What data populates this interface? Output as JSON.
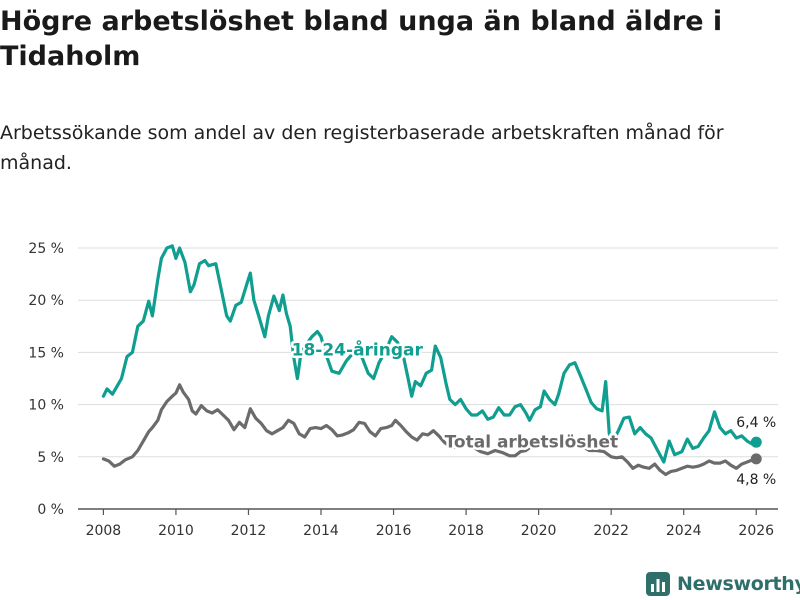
{
  "title": "Högre arbetslöshet bland unga än bland äldre i Tidaholm",
  "subtitle": "Arbetssökande som andel av den registerbaserade arbetskraften månad för månad.",
  "brand": "Newsworthy",
  "colors": {
    "youth": "#0f9e8f",
    "total": "#6b6b6b",
    "grid": "#dddddd",
    "brand": "#2f6f6a"
  },
  "chart_data": {
    "type": "line",
    "title": "Högre arbetslöshet bland unga än bland äldre i Tidaholm",
    "xlabel": "",
    "ylabel": "",
    "xlim": [
      2007.3,
      2026.6
    ],
    "ylim": [
      0,
      25
    ],
    "x_ticks": [
      2008,
      2010,
      2012,
      2014,
      2016,
      2018,
      2020,
      2022,
      2024,
      2026
    ],
    "x_tick_labels": [
      "2008",
      "2010",
      "2012",
      "2014",
      "2016",
      "2018",
      "2020",
      "2022",
      "2024",
      "2026"
    ],
    "y_ticks": [
      0,
      5,
      10,
      15,
      20,
      25
    ],
    "y_tick_labels": [
      "0 %",
      "5 %",
      "10 %",
      "15 %",
      "20 %",
      "25 %"
    ],
    "grid": true,
    "series": [
      {
        "name": "18-24-åringar",
        "label": "18-24-åringar",
        "end_label": "6,4 %",
        "points": [
          [
            2008.0,
            10.8
          ],
          [
            2008.1,
            11.5
          ],
          [
            2008.25,
            11.0
          ],
          [
            2008.5,
            12.5
          ],
          [
            2008.65,
            14.6
          ],
          [
            2008.8,
            15.0
          ],
          [
            2008.95,
            17.5
          ],
          [
            2009.1,
            18.0
          ],
          [
            2009.25,
            19.9
          ],
          [
            2009.35,
            18.5
          ],
          [
            2009.5,
            22.0
          ],
          [
            2009.6,
            24.0
          ],
          [
            2009.75,
            25.0
          ],
          [
            2009.9,
            25.2
          ],
          [
            2010.0,
            24.0
          ],
          [
            2010.1,
            25.0
          ],
          [
            2010.25,
            23.6
          ],
          [
            2010.4,
            20.8
          ],
          [
            2010.5,
            21.5
          ],
          [
            2010.65,
            23.5
          ],
          [
            2010.8,
            23.8
          ],
          [
            2010.9,
            23.3
          ],
          [
            2011.1,
            23.5
          ],
          [
            2011.25,
            21.0
          ],
          [
            2011.4,
            18.5
          ],
          [
            2011.5,
            18.0
          ],
          [
            2011.65,
            19.5
          ],
          [
            2011.8,
            19.8
          ],
          [
            2011.95,
            21.5
          ],
          [
            2012.05,
            22.6
          ],
          [
            2012.15,
            20.0
          ],
          [
            2012.3,
            18.3
          ],
          [
            2012.45,
            16.5
          ],
          [
            2012.55,
            18.5
          ],
          [
            2012.7,
            20.4
          ],
          [
            2012.85,
            19.0
          ],
          [
            2012.95,
            20.5
          ],
          [
            2013.05,
            18.7
          ],
          [
            2013.15,
            17.5
          ],
          [
            2013.25,
            14.5
          ],
          [
            2013.35,
            12.5
          ],
          [
            2013.45,
            15.0
          ],
          [
            2013.6,
            15.8
          ],
          [
            2013.75,
            16.5
          ],
          [
            2013.9,
            17.0
          ],
          [
            2014.0,
            16.5
          ],
          [
            2014.1,
            15.2
          ],
          [
            2014.3,
            13.2
          ],
          [
            2014.5,
            13.0
          ],
          [
            2014.7,
            14.2
          ],
          [
            2014.9,
            15.0
          ],
          [
            2015.1,
            14.8
          ],
          [
            2015.3,
            13.0
          ],
          [
            2015.45,
            12.5
          ],
          [
            2015.6,
            14.0
          ],
          [
            2015.8,
            15.3
          ],
          [
            2015.95,
            16.5
          ],
          [
            2016.1,
            16.0
          ],
          [
            2016.25,
            15.0
          ],
          [
            2016.4,
            12.5
          ],
          [
            2016.5,
            10.8
          ],
          [
            2016.6,
            12.2
          ],
          [
            2016.75,
            11.8
          ],
          [
            2016.9,
            13.0
          ],
          [
            2017.05,
            13.3
          ],
          [
            2017.15,
            15.6
          ],
          [
            2017.3,
            14.5
          ],
          [
            2017.45,
            12.0
          ],
          [
            2017.55,
            10.5
          ],
          [
            2017.7,
            10.0
          ],
          [
            2017.85,
            10.5
          ],
          [
            2018.0,
            9.6
          ],
          [
            2018.15,
            9.0
          ],
          [
            2018.3,
            9.0
          ],
          [
            2018.45,
            9.4
          ],
          [
            2018.6,
            8.6
          ],
          [
            2018.75,
            8.8
          ],
          [
            2018.9,
            9.7
          ],
          [
            2019.05,
            9.0
          ],
          [
            2019.2,
            9.0
          ],
          [
            2019.35,
            9.8
          ],
          [
            2019.5,
            10.0
          ],
          [
            2019.65,
            9.2
          ],
          [
            2019.75,
            8.5
          ],
          [
            2019.9,
            9.5
          ],
          [
            2020.05,
            9.8
          ],
          [
            2020.15,
            11.3
          ],
          [
            2020.3,
            10.5
          ],
          [
            2020.45,
            10.0
          ],
          [
            2020.55,
            11.0
          ],
          [
            2020.7,
            13.0
          ],
          [
            2020.85,
            13.8
          ],
          [
            2021.0,
            14.0
          ],
          [
            2021.15,
            12.8
          ],
          [
            2021.3,
            11.5
          ],
          [
            2021.45,
            10.2
          ],
          [
            2021.6,
            9.6
          ],
          [
            2021.75,
            9.4
          ],
          [
            2021.85,
            12.2
          ],
          [
            2021.95,
            7.2
          ],
          [
            2022.05,
            6.5
          ],
          [
            2022.2,
            7.5
          ],
          [
            2022.35,
            8.7
          ],
          [
            2022.5,
            8.8
          ],
          [
            2022.65,
            7.2
          ],
          [
            2022.8,
            7.8
          ],
          [
            2022.95,
            7.2
          ],
          [
            2023.1,
            6.8
          ],
          [
            2023.25,
            5.8
          ],
          [
            2023.45,
            4.5
          ],
          [
            2023.6,
            6.5
          ],
          [
            2023.75,
            5.2
          ],
          [
            2023.95,
            5.5
          ],
          [
            2024.1,
            6.7
          ],
          [
            2024.25,
            5.8
          ],
          [
            2024.4,
            6.0
          ],
          [
            2024.55,
            6.8
          ],
          [
            2024.7,
            7.5
          ],
          [
            2024.85,
            9.3
          ],
          [
            2025.0,
            7.8
          ],
          [
            2025.15,
            7.2
          ],
          [
            2025.3,
            7.5
          ],
          [
            2025.45,
            6.8
          ],
          [
            2025.6,
            7.0
          ],
          [
            2025.75,
            6.5
          ],
          [
            2025.9,
            6.2
          ],
          [
            2026.0,
            6.4
          ]
        ]
      },
      {
        "name": "Total arbetslöshet",
        "label": "Total arbetslöshet",
        "end_label": "4,8 %",
        "points": [
          [
            2008.0,
            4.8
          ],
          [
            2008.15,
            4.6
          ],
          [
            2008.3,
            4.1
          ],
          [
            2008.45,
            4.3
          ],
          [
            2008.6,
            4.7
          ],
          [
            2008.8,
            5.0
          ],
          [
            2008.95,
            5.6
          ],
          [
            2009.1,
            6.5
          ],
          [
            2009.25,
            7.4
          ],
          [
            2009.35,
            7.8
          ],
          [
            2009.5,
            8.5
          ],
          [
            2009.6,
            9.5
          ],
          [
            2009.75,
            10.3
          ],
          [
            2009.9,
            10.8
          ],
          [
            2010.0,
            11.1
          ],
          [
            2010.1,
            11.9
          ],
          [
            2010.2,
            11.2
          ],
          [
            2010.35,
            10.5
          ],
          [
            2010.45,
            9.4
          ],
          [
            2010.55,
            9.1
          ],
          [
            2010.7,
            9.9
          ],
          [
            2010.85,
            9.4
          ],
          [
            2011.0,
            9.2
          ],
          [
            2011.15,
            9.5
          ],
          [
            2011.3,
            9.0
          ],
          [
            2011.45,
            8.5
          ],
          [
            2011.6,
            7.6
          ],
          [
            2011.75,
            8.3
          ],
          [
            2011.9,
            7.8
          ],
          [
            2012.05,
            9.6
          ],
          [
            2012.2,
            8.7
          ],
          [
            2012.35,
            8.2
          ],
          [
            2012.5,
            7.5
          ],
          [
            2012.65,
            7.2
          ],
          [
            2012.8,
            7.5
          ],
          [
            2012.95,
            7.8
          ],
          [
            2013.1,
            8.5
          ],
          [
            2013.25,
            8.2
          ],
          [
            2013.4,
            7.2
          ],
          [
            2013.55,
            6.9
          ],
          [
            2013.7,
            7.7
          ],
          [
            2013.85,
            7.8
          ],
          [
            2014.0,
            7.7
          ],
          [
            2014.15,
            8.0
          ],
          [
            2014.3,
            7.6
          ],
          [
            2014.45,
            7.0
          ],
          [
            2014.6,
            7.1
          ],
          [
            2014.75,
            7.3
          ],
          [
            2014.9,
            7.6
          ],
          [
            2015.05,
            8.3
          ],
          [
            2015.2,
            8.2
          ],
          [
            2015.35,
            7.4
          ],
          [
            2015.5,
            7.0
          ],
          [
            2015.65,
            7.7
          ],
          [
            2015.8,
            7.8
          ],
          [
            2015.95,
            8.0
          ],
          [
            2016.05,
            8.5
          ],
          [
            2016.2,
            8.0
          ],
          [
            2016.35,
            7.4
          ],
          [
            2016.5,
            6.9
          ],
          [
            2016.65,
            6.6
          ],
          [
            2016.8,
            7.2
          ],
          [
            2016.95,
            7.1
          ],
          [
            2017.1,
            7.5
          ],
          [
            2017.25,
            7.0
          ],
          [
            2017.4,
            6.4
          ],
          [
            2017.55,
            6.0
          ],
          [
            2017.7,
            5.9
          ],
          [
            2017.85,
            6.2
          ],
          [
            2018.0,
            6.3
          ],
          [
            2018.2,
            5.9
          ],
          [
            2018.4,
            5.5
          ],
          [
            2018.6,
            5.3
          ],
          [
            2018.8,
            5.6
          ],
          [
            2019.0,
            5.4
          ],
          [
            2019.2,
            5.1
          ],
          [
            2019.35,
            5.1
          ],
          [
            2019.5,
            5.5
          ],
          [
            2019.65,
            5.6
          ],
          [
            2019.8,
            6.0
          ],
          [
            2020.0,
            6.0
          ],
          [
            2020.2,
            6.4
          ],
          [
            2020.4,
            6.6
          ],
          [
            2020.6,
            6.5
          ],
          [
            2020.8,
            6.5
          ],
          [
            2021.0,
            6.3
          ],
          [
            2021.2,
            6.0
          ],
          [
            2021.4,
            5.6
          ],
          [
            2021.6,
            5.6
          ],
          [
            2021.8,
            5.5
          ],
          [
            2022.0,
            5.0
          ],
          [
            2022.15,
            4.9
          ],
          [
            2022.3,
            5.0
          ],
          [
            2022.45,
            4.5
          ],
          [
            2022.6,
            3.9
          ],
          [
            2022.75,
            4.2
          ],
          [
            2022.9,
            4.0
          ],
          [
            2023.05,
            3.9
          ],
          [
            2023.2,
            4.3
          ],
          [
            2023.35,
            3.7
          ],
          [
            2023.5,
            3.3
          ],
          [
            2023.65,
            3.6
          ],
          [
            2023.8,
            3.7
          ],
          [
            2023.95,
            3.9
          ],
          [
            2024.1,
            4.1
          ],
          [
            2024.25,
            4.0
          ],
          [
            2024.4,
            4.1
          ],
          [
            2024.55,
            4.3
          ],
          [
            2024.7,
            4.6
          ],
          [
            2024.85,
            4.4
          ],
          [
            2025.0,
            4.4
          ],
          [
            2025.15,
            4.6
          ],
          [
            2025.3,
            4.2
          ],
          [
            2025.45,
            3.9
          ],
          [
            2025.6,
            4.3
          ],
          [
            2025.75,
            4.5
          ],
          [
            2025.9,
            4.7
          ],
          [
            2026.0,
            4.8
          ]
        ]
      }
    ]
  }
}
